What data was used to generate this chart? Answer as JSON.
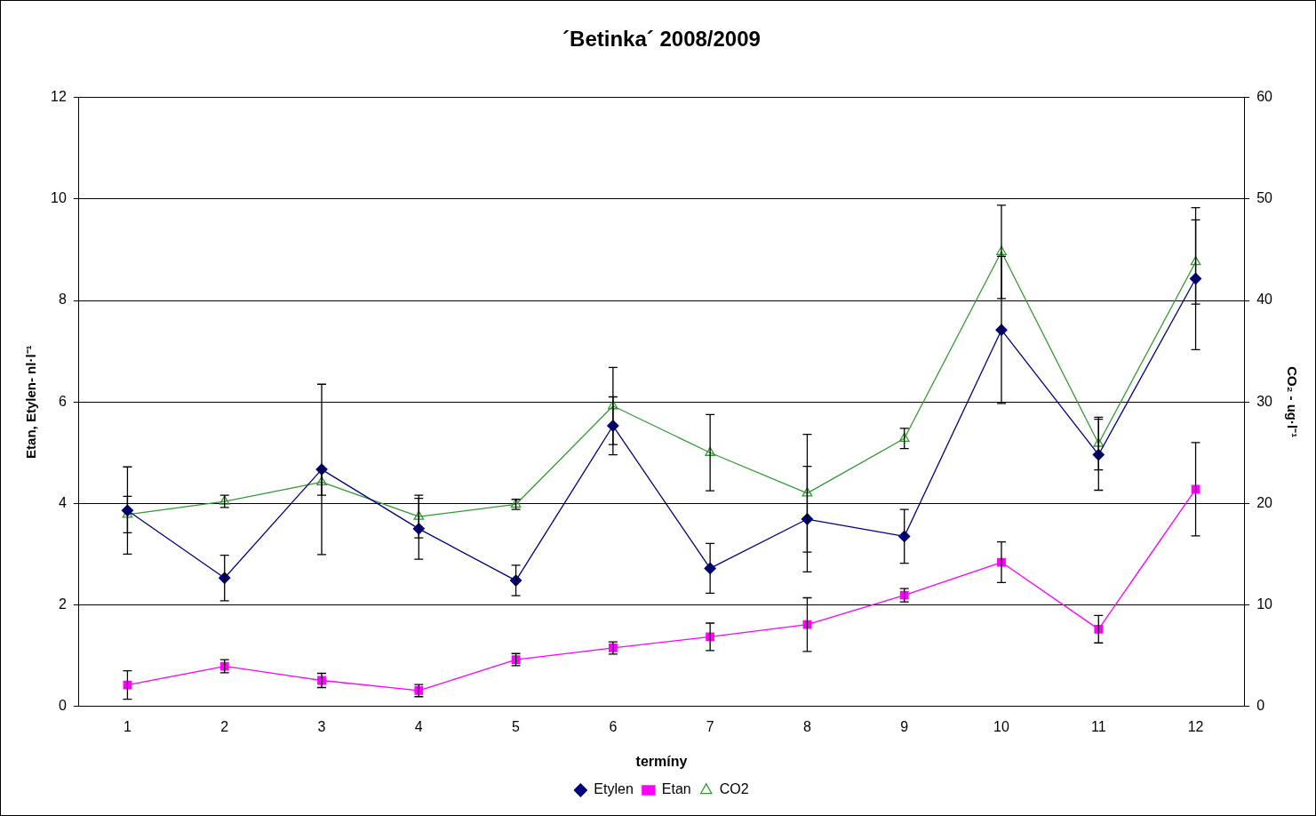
{
  "chart_data": {
    "type": "line",
    "title": "´Betinka´ 2008/2009",
    "xlabel": "termíny",
    "ylabel": "Etan, Etylen- nl·l⁻¹",
    "y2label": "CO₂ - ug·l⁻¹",
    "categories": [
      "1",
      "2",
      "3",
      "4",
      "5",
      "6",
      "7",
      "8",
      "9",
      "10",
      "11",
      "12"
    ],
    "ylim": [
      0,
      12
    ],
    "yticks": [
      0,
      2,
      4,
      6,
      8,
      10,
      12
    ],
    "y2lim": [
      0,
      60
    ],
    "y2ticks": [
      0,
      10,
      20,
      30,
      40,
      50,
      60
    ],
    "grid": "y",
    "legend": "bottom",
    "line_style": "solid",
    "series": [
      {
        "name": "Etylen",
        "color": "#000080",
        "marker": "diamond",
        "values": [
          3.86,
          2.53,
          4.67,
          3.5,
          2.48,
          5.53,
          2.72,
          3.69,
          3.35,
          7.42,
          4.96,
          8.43
        ],
        "errors": [
          0.86,
          0.45,
          1.68,
          0.6,
          0.3,
          0.57,
          0.49,
          1.04,
          0.53,
          1.45,
          0.7,
          1.4
        ]
      },
      {
        "name": "Etan",
        "color": "#ff00ff",
        "marker": "square",
        "values": [
          0.42,
          0.79,
          0.51,
          0.31,
          0.92,
          1.15,
          1.37,
          1.61,
          2.19,
          2.84,
          1.52,
          4.28
        ],
        "errors": [
          0.28,
          0.13,
          0.14,
          0.12,
          0.12,
          0.12,
          0.27,
          0.53,
          0.13,
          0.4,
          0.27,
          0.92
        ]
      },
      {
        "name": "CO2",
        "color": "#339933",
        "marker": "triangle",
        "axis": "y2",
        "values": [
          18.9,
          20.2,
          22.1,
          18.7,
          19.9,
          29.6,
          25.0,
          21.0,
          26.4,
          44.8,
          25.9,
          43.8
        ],
        "errors": [
          1.8,
          0.6,
          1.3,
          2.1,
          0.5,
          3.8,
          3.75,
          5.8,
          1.0,
          4.6,
          2.6,
          4.15
        ]
      }
    ]
  }
}
